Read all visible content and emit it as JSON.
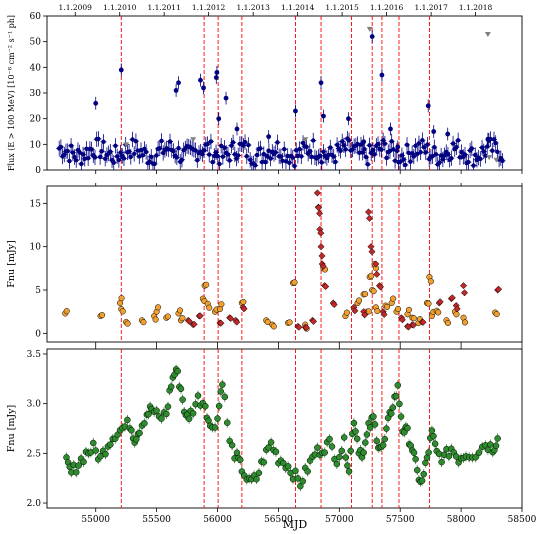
{
  "chart_data": {
    "type": "scatter",
    "x_axis": {
      "label": "MJD",
      "range": [
        54600,
        58500
      ],
      "ticks": [
        55000,
        55500,
        56000,
        56500,
        57000,
        57500,
        58000,
        58500
      ],
      "tick_labels": [
        "55000",
        "55500",
        "56000",
        "56500",
        "57000",
        "57500",
        "58000",
        "58500"
      ]
    },
    "top_axis": {
      "labels": [
        "1.1.2009",
        "1.1.2010",
        "1.1.2011",
        "1.1.2012",
        "1.1.2013",
        "1.1.2014",
        "1.1.2015",
        "1.1.2016",
        "1.1.2017",
        "1.1.2018"
      ],
      "mjd": [
        54832,
        55197,
        55562,
        55927,
        56293,
        56658,
        57023,
        57388,
        57754,
        58119
      ]
    },
    "flare_lines_mjd": [
      55210,
      55890,
      56005,
      56200,
      56640,
      56850,
      57100,
      57270,
      57350,
      57490,
      57740
    ],
    "colors": {
      "gamma": "#000080",
      "gamma_upper_limit": "#808080",
      "optical_a": "#f0a030",
      "optical_b": "#c0282a",
      "radio": "#2e8b2e",
      "flare_line": "#ff0000"
    },
    "panels": [
      {
        "ylabel": "Flux (E > 100 MeV) [10⁻⁸ cm⁻² s⁻¹ ph]",
        "ylim": [
          0,
          60
        ],
        "yticks": [
          0,
          10,
          20,
          30,
          40,
          50,
          60
        ],
        "baseline": 7,
        "points": [
          [
            55000,
            26
          ],
          [
            55210,
            39
          ],
          [
            55660,
            31
          ],
          [
            55680,
            34
          ],
          [
            55860,
            35
          ],
          [
            55885,
            32
          ],
          [
            55995,
            38
          ],
          [
            55990,
            36
          ],
          [
            56010,
            20
          ],
          [
            56070,
            28
          ],
          [
            56160,
            16
          ],
          [
            56420,
            13
          ],
          [
            56640,
            23
          ],
          [
            56850,
            34
          ],
          [
            56870,
            21
          ],
          [
            57075,
            20
          ],
          [
            57200,
            11
          ],
          [
            57270,
            52
          ],
          [
            57350,
            37
          ],
          [
            57420,
            16
          ],
          [
            57480,
            9
          ],
          [
            57730,
            25
          ],
          [
            57775,
            15
          ],
          [
            57890,
            14
          ],
          [
            58220,
            12
          ]
        ],
        "upper_limits": [
          [
            58220,
            53
          ],
          [
            57250,
            55
          ],
          [
            55250,
            10
          ],
          [
            55800,
            12
          ],
          [
            56720,
            12
          ],
          [
            58230,
            5
          ],
          [
            58290,
            4
          ]
        ]
      },
      {
        "ylabel": "Fnu [mJy]",
        "ylim": [
          -1,
          17
        ],
        "yticks": [
          0,
          5,
          10,
          15
        ],
        "series_a_points": [
          [
            54750,
            2.3
          ],
          [
            55040,
            2.0
          ],
          [
            55200,
            3.5
          ],
          [
            55210,
            2.8
          ],
          [
            55250,
            1.3
          ],
          [
            55380,
            1.5
          ],
          [
            55480,
            2.0
          ],
          [
            55500,
            2.5
          ],
          [
            55580,
            1.8
          ],
          [
            55680,
            2.3
          ],
          [
            55700,
            1.5
          ],
          [
            55880,
            4.0
          ],
          [
            55895,
            5.5
          ],
          [
            55920,
            3.4
          ],
          [
            55980,
            2.5
          ],
          [
            56020,
            2.8
          ],
          [
            56200,
            3.5
          ],
          [
            56400,
            1.5
          ],
          [
            56450,
            1.0
          ],
          [
            56580,
            1.2
          ],
          [
            56620,
            5.8
          ],
          [
            56720,
            1.0
          ],
          [
            56870,
            7.5
          ],
          [
            57050,
            2.0
          ],
          [
            57150,
            3.5
          ],
          [
            57200,
            4.5
          ],
          [
            57230,
            2.5
          ],
          [
            57250,
            6.5
          ],
          [
            57270,
            5.0
          ],
          [
            57290,
            8.0
          ],
          [
            57300,
            3.0
          ],
          [
            57380,
            3.2
          ],
          [
            57430,
            3.5
          ],
          [
            57470,
            2.5
          ],
          [
            57560,
            2.2
          ],
          [
            57600,
            1.8
          ],
          [
            57650,
            1.2
          ],
          [
            57720,
            3.5
          ],
          [
            57740,
            6.5
          ],
          [
            57760,
            2.0
          ],
          [
            57800,
            2.6
          ],
          [
            57880,
            1.5
          ],
          [
            57950,
            2.5
          ],
          [
            58020,
            1.8
          ],
          [
            58280,
            2.4
          ]
        ],
        "series_b_points": [
          [
            55760,
            1.5
          ],
          [
            55800,
            1.0
          ],
          [
            55850,
            2.0
          ],
          [
            56020,
            1.2
          ],
          [
            56100,
            1.8
          ],
          [
            56150,
            1.5
          ],
          [
            56210,
            3.0
          ],
          [
            56660,
            0.8
          ],
          [
            56720,
            0.7
          ],
          [
            56780,
            1.5
          ],
          [
            56820,
            16.2
          ],
          [
            56830,
            14.5
          ],
          [
            56840,
            12.0
          ],
          [
            56850,
            10.0
          ],
          [
            56860,
            8.0
          ],
          [
            56880,
            5.5
          ],
          [
            56950,
            3.5
          ],
          [
            57120,
            3.0
          ],
          [
            57200,
            2.5
          ],
          [
            57240,
            14.0
          ],
          [
            57260,
            10.0
          ],
          [
            57300,
            8.0
          ],
          [
            57330,
            5.5
          ],
          [
            57360,
            2.5
          ],
          [
            57510,
            1.8
          ],
          [
            57560,
            0.8
          ],
          [
            57600,
            1.0
          ],
          [
            57680,
            1.3
          ],
          [
            57820,
            3.5
          ],
          [
            57920,
            4.0
          ],
          [
            57960,
            3.2
          ],
          [
            58020,
            5.5
          ],
          [
            58300,
            5.0
          ]
        ]
      },
      {
        "ylabel": "Fnu [mJy]",
        "ylim": [
          1.95,
          3.55
        ],
        "yticks": [
          2.0,
          2.5,
          3.0,
          3.5
        ],
        "yticklabels": [
          "2.0",
          "2.5",
          "3.0",
          "3.5"
        ],
        "points": [
          [
            54760,
            2.4
          ],
          [
            54800,
            2.3
          ],
          [
            54860,
            2.4
          ],
          [
            54920,
            2.5
          ],
          [
            54980,
            2.55
          ],
          [
            55040,
            2.45
          ],
          [
            55100,
            2.6
          ],
          [
            55160,
            2.7
          ],
          [
            55220,
            2.75
          ],
          [
            55280,
            2.8
          ],
          [
            55320,
            2.65
          ],
          [
            55360,
            2.75
          ],
          [
            55420,
            2.9
          ],
          [
            55460,
            2.95
          ],
          [
            55520,
            2.85
          ],
          [
            55580,
            2.9
          ],
          [
            55620,
            3.2
          ],
          [
            55660,
            3.35
          ],
          [
            55700,
            3.15
          ],
          [
            55740,
            2.85
          ],
          [
            55780,
            2.9
          ],
          [
            55840,
            3.05
          ],
          [
            55900,
            3.0
          ],
          [
            55940,
            2.75
          ],
          [
            56000,
            2.85
          ],
          [
            56040,
            3.25
          ],
          [
            56100,
            2.6
          ],
          [
            56160,
            2.45
          ],
          [
            56200,
            2.35
          ],
          [
            56260,
            2.2
          ],
          [
            56320,
            2.25
          ],
          [
            56380,
            2.45
          ],
          [
            56440,
            2.6
          ],
          [
            56500,
            2.45
          ],
          [
            56560,
            2.4
          ],
          [
            56620,
            2.3
          ],
          [
            56680,
            2.2
          ],
          [
            56740,
            2.35
          ],
          [
            56800,
            2.5
          ],
          [
            56860,
            2.55
          ],
          [
            56920,
            2.6
          ],
          [
            56980,
            2.45
          ],
          [
            57040,
            2.6
          ],
          [
            57080,
            2.35
          ],
          [
            57120,
            2.85
          ],
          [
            57160,
            2.55
          ],
          [
            57200,
            2.5
          ],
          [
            57240,
            2.75
          ],
          [
            57280,
            2.85
          ],
          [
            57320,
            2.6
          ],
          [
            57360,
            2.55
          ],
          [
            57400,
            2.8
          ],
          [
            57440,
            3.0
          ],
          [
            57480,
            3.15
          ],
          [
            57520,
            2.75
          ],
          [
            57560,
            2.7
          ],
          [
            57600,
            2.55
          ],
          [
            57640,
            2.3
          ],
          [
            57680,
            2.2
          ],
          [
            57720,
            2.45
          ],
          [
            57760,
            2.7
          ],
          [
            57800,
            2.5
          ],
          [
            57860,
            2.45
          ],
          [
            57920,
            2.55
          ],
          [
            57980,
            2.45
          ],
          [
            58040,
            2.5
          ],
          [
            58120,
            2.5
          ],
          [
            58200,
            2.6
          ],
          [
            58260,
            2.55
          ],
          [
            58300,
            2.65
          ]
        ]
      }
    ]
  }
}
